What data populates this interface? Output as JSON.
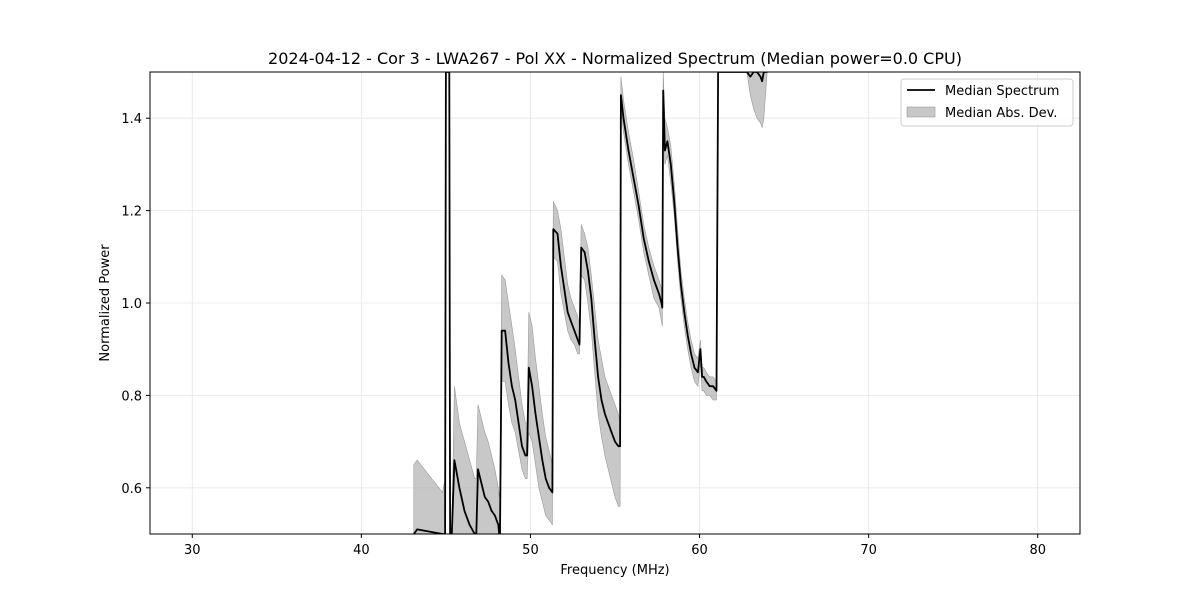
{
  "chart_data": {
    "type": "line",
    "title": "2024-04-12 - Cor 3 - LWA267 - Pol XX - Normalized Spectrum (Median power=0.0 CPU)",
    "xlabel": "Frequency (MHz)",
    "ylabel": "Normalized Power",
    "xlim": [
      27.5,
      82.5
    ],
    "ylim": [
      0.5,
      1.5
    ],
    "xticks": [
      30,
      40,
      50,
      60,
      70,
      80
    ],
    "yticks": [
      0.6,
      0.8,
      1.0,
      1.2,
      1.4
    ],
    "grid": true,
    "legend_position": "top-right",
    "colors": {
      "line": "#000000",
      "band": "#b0b0b0"
    },
    "series": [
      {
        "name": "Median Spectrum",
        "x": [
          43.1,
          43.3,
          44.8,
          44.95,
          45.0,
          45.2,
          45.25,
          45.35,
          45.5,
          45.8,
          46.1,
          46.4,
          46.7,
          46.8,
          46.9,
          47.1,
          47.3,
          47.5,
          47.7,
          47.9,
          48.1,
          48.15,
          48.2,
          48.3,
          48.5,
          48.7,
          48.9,
          49.1,
          49.3,
          49.5,
          49.7,
          49.8,
          49.9,
          50.1,
          50.3,
          50.5,
          50.7,
          50.9,
          51.1,
          51.3,
          51.35,
          51.6,
          51.8,
          52.0,
          52.2,
          52.4,
          52.6,
          52.8,
          52.9,
          53.0,
          53.2,
          53.4,
          53.6,
          53.8,
          54.0,
          54.2,
          54.4,
          54.6,
          54.8,
          55.0,
          55.2,
          55.3,
          55.35,
          55.5,
          55.8,
          56.1,
          56.4,
          56.7,
          57.0,
          57.3,
          57.6,
          57.75,
          57.8,
          57.85,
          57.95,
          58.1,
          58.3,
          58.5,
          58.7,
          58.9,
          59.1,
          59.3,
          59.5,
          59.7,
          59.9,
          60.05,
          60.15,
          60.25,
          60.4,
          60.6,
          60.8,
          61.0,
          61.1,
          62.8,
          63.0,
          63.2,
          63.4,
          63.6,
          63.7,
          63.8,
          64.0
        ],
        "values": [
          0.5,
          0.51,
          0.5,
          0.5,
          1.5,
          1.5,
          0.5,
          0.5,
          0.66,
          0.6,
          0.55,
          0.52,
          0.5,
          0.5,
          0.64,
          0.61,
          0.58,
          0.57,
          0.55,
          0.54,
          0.52,
          0.5,
          0.5,
          0.94,
          0.94,
          0.87,
          0.82,
          0.79,
          0.74,
          0.69,
          0.67,
          0.67,
          0.86,
          0.82,
          0.76,
          0.71,
          0.66,
          0.62,
          0.6,
          0.59,
          1.16,
          1.15,
          1.08,
          1.03,
          0.98,
          0.96,
          0.94,
          0.92,
          0.91,
          1.12,
          1.11,
          1.07,
          1.01,
          0.92,
          0.84,
          0.79,
          0.76,
          0.74,
          0.72,
          0.7,
          0.69,
          0.69,
          1.45,
          1.4,
          1.33,
          1.27,
          1.21,
          1.14,
          1.09,
          1.05,
          1.02,
          1.0,
          0.99,
          1.46,
          1.33,
          1.35,
          1.3,
          1.22,
          1.12,
          1.04,
          0.98,
          0.93,
          0.89,
          0.86,
          0.85,
          0.9,
          0.84,
          0.84,
          0.83,
          0.82,
          0.82,
          0.81,
          1.5,
          1.5,
          1.49,
          1.5,
          1.5,
          1.49,
          1.48,
          1.5,
          1.5
        ],
        "lower": [
          0.5,
          0.5,
          0.5,
          0.5,
          1.5,
          1.5,
          0.5,
          0.5,
          0.5,
          0.5,
          0.5,
          0.5,
          0.5,
          0.5,
          0.5,
          0.5,
          0.5,
          0.5,
          0.5,
          0.5,
          0.5,
          0.5,
          0.5,
          0.83,
          0.83,
          0.78,
          0.74,
          0.72,
          0.68,
          0.64,
          0.62,
          0.62,
          0.72,
          0.7,
          0.65,
          0.6,
          0.57,
          0.54,
          0.53,
          0.52,
          1.1,
          1.09,
          1.02,
          0.98,
          0.94,
          0.92,
          0.91,
          0.89,
          0.89,
          1.06,
          1.05,
          1.0,
          0.94,
          0.85,
          0.76,
          0.71,
          0.67,
          0.64,
          0.61,
          0.58,
          0.56,
          0.56,
          1.42,
          1.37,
          1.3,
          1.24,
          1.18,
          1.11,
          1.06,
          1.01,
          0.99,
          0.96,
          0.95,
          1.41,
          1.3,
          1.32,
          1.26,
          1.19,
          1.09,
          1.01,
          0.95,
          0.9,
          0.86,
          0.83,
          0.82,
          0.87,
          0.81,
          0.81,
          0.8,
          0.8,
          0.79,
          0.79,
          1.5,
          1.5,
          1.45,
          1.42,
          1.4,
          1.39,
          1.38,
          1.4,
          1.5
        ],
        "upper": [
          0.65,
          0.66,
          0.59,
          0.62,
          1.5,
          1.5,
          0.5,
          0.5,
          0.82,
          0.74,
          0.7,
          0.66,
          0.62,
          0.62,
          0.78,
          0.75,
          0.72,
          0.7,
          0.67,
          0.64,
          0.6,
          0.58,
          0.6,
          1.06,
          1.05,
          1.0,
          0.95,
          0.9,
          0.84,
          0.78,
          0.74,
          0.74,
          0.98,
          0.95,
          0.88,
          0.82,
          0.76,
          0.71,
          0.68,
          0.65,
          1.22,
          1.2,
          1.16,
          1.1,
          1.04,
          1.01,
          0.99,
          0.97,
          0.95,
          1.17,
          1.15,
          1.12,
          1.06,
          0.99,
          0.92,
          0.88,
          0.84,
          0.82,
          0.8,
          0.78,
          0.76,
          0.74,
          1.49,
          1.44,
          1.37,
          1.31,
          1.24,
          1.17,
          1.12,
          1.08,
          1.05,
          1.03,
          1.02,
          1.5,
          1.4,
          1.38,
          1.34,
          1.26,
          1.16,
          1.07,
          1.01,
          0.96,
          0.92,
          0.89,
          0.88,
          0.92,
          0.86,
          0.86,
          0.85,
          0.84,
          0.84,
          0.83,
          1.5,
          1.5,
          1.5,
          1.5,
          1.5,
          1.5,
          1.5,
          1.5,
          1.5
        ]
      },
      {
        "name": "Median Abs. Dev."
      }
    ]
  }
}
